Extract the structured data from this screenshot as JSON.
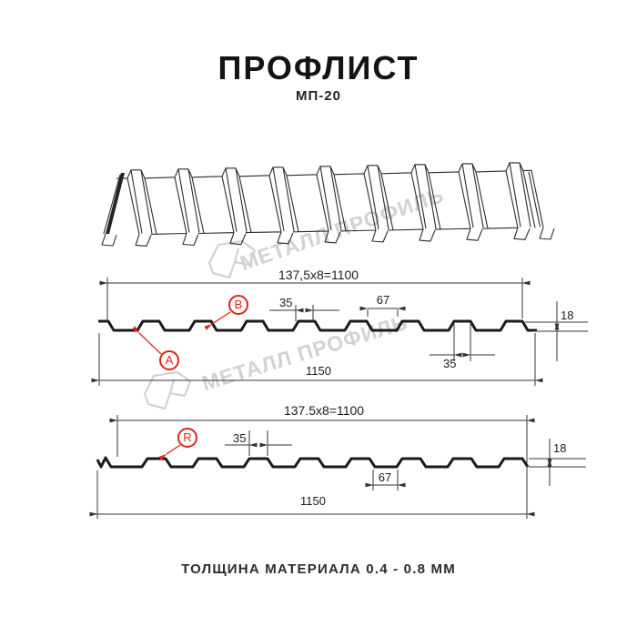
{
  "page": {
    "title": "ПРОФЛИСТ",
    "subtitle": "МП-20",
    "footer": "ТОЛЩИНА МАТЕРИАЛА 0.4 - 0.8 ММ"
  },
  "watermark": {
    "brand": "МЕТАЛЛ ПРОФИЛЬ"
  },
  "colors": {
    "accent_red": "#e2231a",
    "drawing_line": "#1a1a1a",
    "watermark_gray": "#d2d2d2"
  },
  "drawing_a": {
    "side_labels": {
      "a": "A",
      "b": "B"
    },
    "dims": {
      "pitch": "137,5x8=1100",
      "rib_top": "35",
      "valley": "67",
      "height": "18",
      "rib_bottom": "35",
      "overall_width": "1150"
    }
  },
  "drawing_r": {
    "side_labels": {
      "r": "R"
    },
    "dims": {
      "pitch": "137.5x8=1100",
      "rib_top": "35",
      "valley": "67",
      "height": "18",
      "overall_width": "1150"
    }
  }
}
